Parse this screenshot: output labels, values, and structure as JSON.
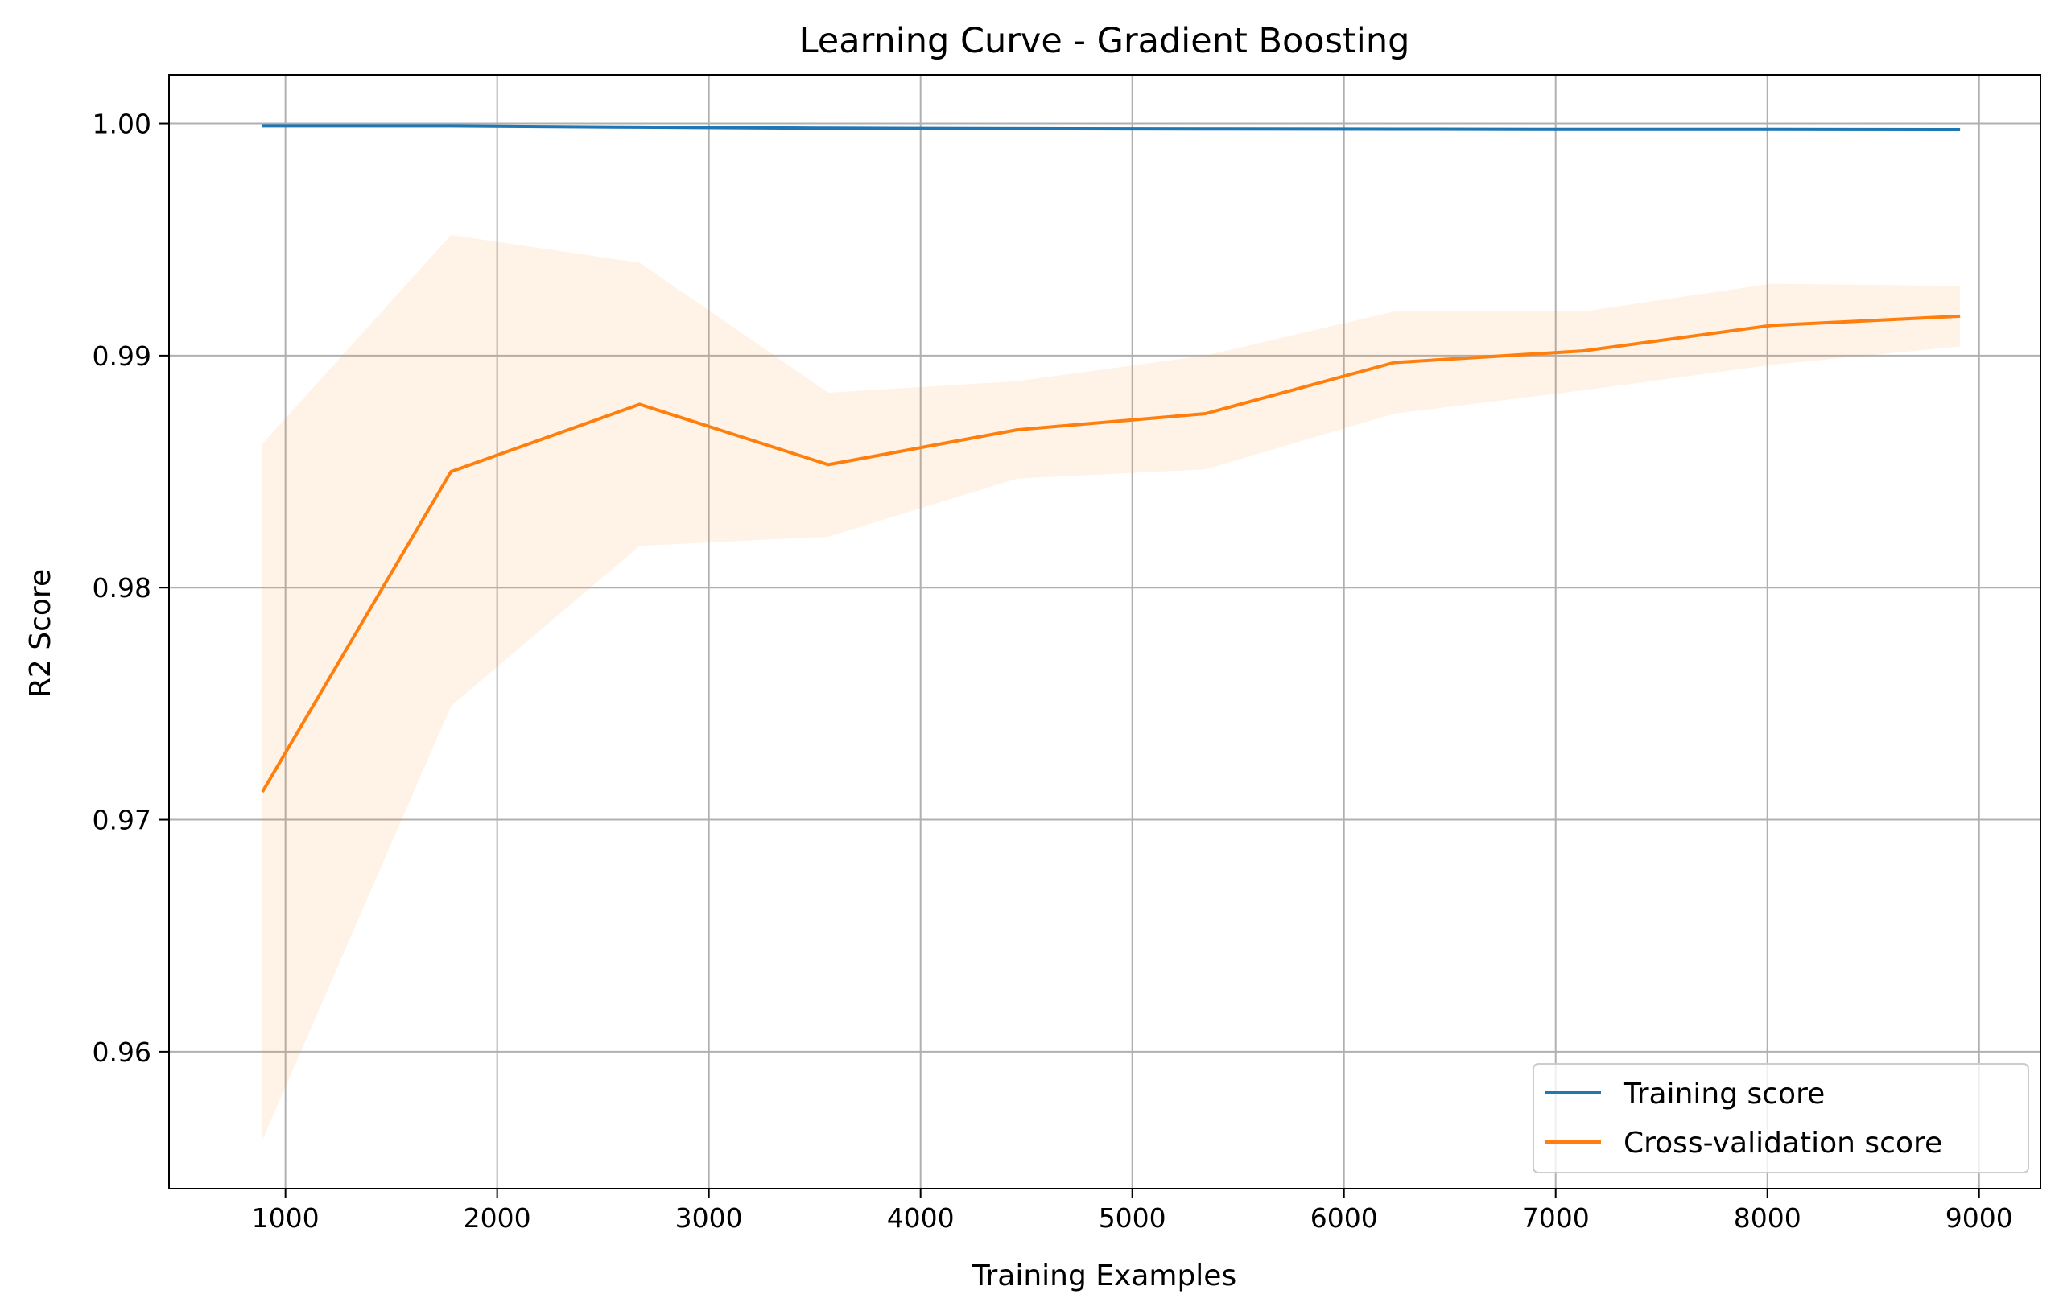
{
  "chart_data": {
    "type": "line",
    "title": "Learning Curve - Gradient Boosting",
    "xlabel": "Training Examples",
    "ylabel": "R2 Score",
    "xlim": [
      450,
      9290
    ],
    "ylim": [
      0.9541,
      1.0021
    ],
    "xticks": [
      1000,
      2000,
      3000,
      4000,
      5000,
      6000,
      7000,
      8000,
      9000
    ],
    "xtick_labels": [
      "1000",
      "2000",
      "3000",
      "4000",
      "5000",
      "6000",
      "7000",
      "8000",
      "9000"
    ],
    "yticks": [
      0.96,
      0.97,
      0.98,
      0.99,
      1.0
    ],
    "ytick_labels": [
      "0.96",
      "0.97",
      "0.98",
      "0.99",
      "1.00"
    ],
    "grid": true,
    "legend_position": "lower-right",
    "x": [
      891,
      1782,
      2673,
      3564,
      4455,
      5346,
      6237,
      7128,
      8019,
      8910
    ],
    "series": [
      {
        "name": "Training score",
        "color": "#1f77b4",
        "values": [
          0.9999,
          0.9999,
          0.99985,
          0.9998,
          0.99978,
          0.99977,
          0.99976,
          0.99975,
          0.99975,
          0.99974
        ],
        "lower": [
          0.99985,
          0.99983,
          0.99978,
          0.99973,
          0.99971,
          0.9997,
          0.99969,
          0.99968,
          0.99968,
          0.99967
        ],
        "upper": [
          0.99995,
          0.99997,
          0.99992,
          0.99987,
          0.99985,
          0.99984,
          0.99983,
          0.99982,
          0.99982,
          0.99981
        ]
      },
      {
        "name": "Cross-validation score",
        "color": "#ff7f0e",
        "band_color": "#ff7f0e",
        "values": [
          0.9712,
          0.985,
          0.9879,
          0.9853,
          0.9868,
          0.9875,
          0.9897,
          0.9902,
          0.9913,
          0.9917
        ],
        "lower": [
          0.9562,
          0.9749,
          0.9818,
          0.9822,
          0.9847,
          0.9851,
          0.9875,
          0.9885,
          0.9896,
          0.9904
        ],
        "upper": [
          0.9862,
          0.9952,
          0.994,
          0.9884,
          0.9889,
          0.99,
          0.9919,
          0.9919,
          0.9931,
          0.993
        ]
      }
    ]
  }
}
